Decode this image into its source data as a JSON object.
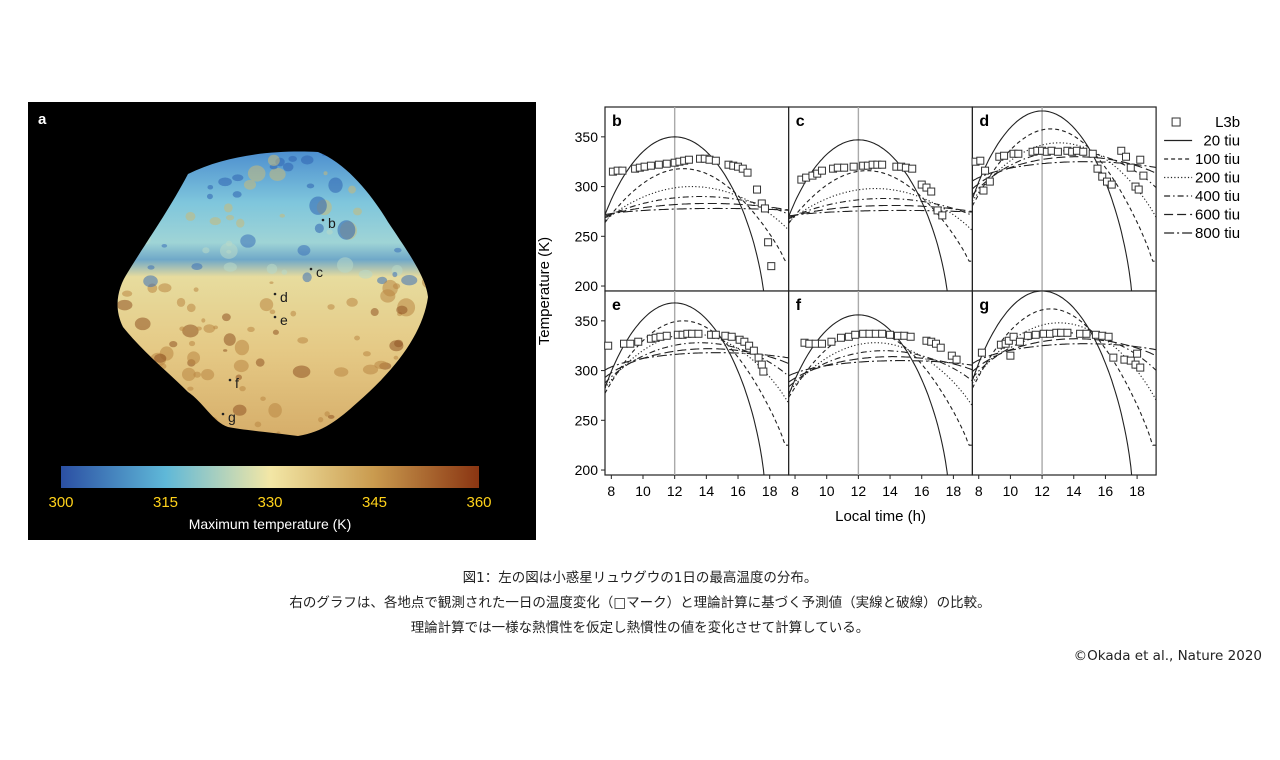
{
  "panel_a": {
    "label": "a",
    "points": [
      "b",
      "c",
      "d",
      "e",
      "f",
      "g"
    ],
    "colorbar": {
      "ticks": [
        "300",
        "315",
        "330",
        "345",
        "360"
      ],
      "title": "Maximum temperature (K)",
      "colors": [
        "#2b4fa3",
        "#5fb8d8",
        "#f3e7a6",
        "#c99a4e",
        "#8a3512"
      ]
    }
  },
  "chart_data": {
    "type": "line",
    "xlabel": "Local time (h)",
    "ylabel": "Temperature (K)",
    "xlim": [
      7.6,
      19.2
    ],
    "ylim": [
      195,
      380
    ],
    "xticks": [
      8,
      10,
      12,
      14,
      16,
      18
    ],
    "yticks": [
      200,
      250,
      300,
      350
    ],
    "vline": 12,
    "legend_position": "right",
    "legend": [
      {
        "name": "L3b",
        "style": "square"
      },
      {
        "name": "20 tiu",
        "style": "solid"
      },
      {
        "name": "100 tiu",
        "style": "dashed-short"
      },
      {
        "name": "200 tiu",
        "style": "dotted"
      },
      {
        "name": "400 tiu",
        "style": "dash-dot"
      },
      {
        "name": "600 tiu",
        "style": "dashed-long"
      },
      {
        "name": "800 tiu",
        "style": "dash-dot-long"
      }
    ],
    "panels": [
      {
        "label": "b",
        "tmax": [
          350,
          318,
          300,
          290,
          283,
          278
        ],
        "obs": [
          [
            8.1,
            315
          ],
          [
            8.4,
            316
          ],
          [
            8.7,
            316
          ],
          [
            9.5,
            318
          ],
          [
            9.8,
            319
          ],
          [
            10.1,
            320
          ],
          [
            10.5,
            321
          ],
          [
            11,
            322
          ],
          [
            11.5,
            323
          ],
          [
            12,
            324
          ],
          [
            12.3,
            325
          ],
          [
            12.6,
            326
          ],
          [
            12.9,
            327
          ],
          [
            13.6,
            328
          ],
          [
            13.9,
            328
          ],
          [
            14.2,
            327
          ],
          [
            14.6,
            326
          ],
          [
            15.4,
            322
          ],
          [
            15.7,
            321
          ],
          [
            16,
            320
          ],
          [
            16.3,
            318
          ],
          [
            16.6,
            314
          ],
          [
            17.2,
            297
          ],
          [
            17.5,
            283
          ],
          [
            17.7,
            278
          ],
          [
            17.9,
            244
          ],
          [
            18.1,
            220
          ]
        ]
      },
      {
        "label": "c",
        "tmax": [
          347,
          316,
          298,
          288,
          281,
          276
        ],
        "obs": [
          [
            8.4,
            307
          ],
          [
            8.7,
            309
          ],
          [
            9.1,
            311
          ],
          [
            9.4,
            313
          ],
          [
            9.7,
            316
          ],
          [
            10.4,
            318
          ],
          [
            10.7,
            319
          ],
          [
            11.1,
            319
          ],
          [
            11.7,
            320
          ],
          [
            12.3,
            321
          ],
          [
            12.6,
            321
          ],
          [
            12.9,
            322
          ],
          [
            13.2,
            322
          ],
          [
            13.5,
            322
          ],
          [
            14.4,
            320
          ],
          [
            14.7,
            320
          ],
          [
            15,
            319
          ],
          [
            15.4,
            318
          ],
          [
            16,
            302
          ],
          [
            16.3,
            299
          ],
          [
            16.6,
            295
          ],
          [
            17,
            276
          ],
          [
            17.3,
            271
          ]
        ]
      },
      {
        "label": "d",
        "tmax": [
          376,
          358,
          344,
          336,
          330,
          325
        ],
        "obs": [
          [
            7.8,
            325
          ],
          [
            8.1,
            326
          ],
          [
            8.4,
            316
          ],
          [
            8.7,
            305
          ],
          [
            8.3,
            296
          ],
          [
            9.3,
            330
          ],
          [
            9.6,
            331
          ],
          [
            10.2,
            333
          ],
          [
            10.5,
            333
          ],
          [
            11.4,
            335
          ],
          [
            11.7,
            336
          ],
          [
            12,
            336
          ],
          [
            12.3,
            335
          ],
          [
            12.6,
            336
          ],
          [
            13,
            335
          ],
          [
            13.6,
            336
          ],
          [
            13.9,
            335
          ],
          [
            14.2,
            336
          ],
          [
            14.6,
            335
          ],
          [
            15.2,
            333
          ],
          [
            15.5,
            318
          ],
          [
            15.8,
            310
          ],
          [
            16.1,
            305
          ],
          [
            16.4,
            302
          ],
          [
            17,
            336
          ],
          [
            17.3,
            330
          ],
          [
            17.6,
            319
          ],
          [
            17.9,
            300
          ],
          [
            18.1,
            297
          ],
          [
            18.4,
            311
          ],
          [
            18.2,
            327
          ]
        ]
      },
      {
        "label": "e",
        "tmax": [
          368,
          350,
          337,
          328,
          322,
          318
        ],
        "obs": [
          [
            7.8,
            325
          ],
          [
            8.8,
            327
          ],
          [
            9.2,
            327
          ],
          [
            9.7,
            329
          ],
          [
            10.5,
            332
          ],
          [
            10.8,
            333
          ],
          [
            11.1,
            334
          ],
          [
            11.5,
            335
          ],
          [
            12.2,
            336
          ],
          [
            12.5,
            336
          ],
          [
            12.8,
            337
          ],
          [
            13.1,
            337
          ],
          [
            13.5,
            337
          ],
          [
            14.3,
            336
          ],
          [
            14.6,
            336
          ],
          [
            15.2,
            335
          ],
          [
            15.6,
            334
          ],
          [
            16.1,
            331
          ],
          [
            16.4,
            329
          ],
          [
            16.7,
            325
          ],
          [
            17,
            320
          ],
          [
            17.3,
            313
          ],
          [
            17.5,
            306
          ],
          [
            17.6,
            299
          ]
        ]
      },
      {
        "label": "f",
        "tmax": [
          356,
          340,
          328,
          320,
          314,
          310
        ],
        "obs": [
          [
            8.6,
            328
          ],
          [
            8.9,
            327
          ],
          [
            9.3,
            327
          ],
          [
            9.7,
            327
          ],
          [
            10.3,
            329
          ],
          [
            10.9,
            333
          ],
          [
            11.4,
            334
          ],
          [
            11.8,
            336
          ],
          [
            12.3,
            337
          ],
          [
            12.7,
            337
          ],
          [
            13.1,
            337
          ],
          [
            13.5,
            337
          ],
          [
            14,
            336
          ],
          [
            14.5,
            335
          ],
          [
            14.9,
            335
          ],
          [
            15.3,
            334
          ],
          [
            16.3,
            330
          ],
          [
            16.6,
            329
          ],
          [
            16.9,
            327
          ],
          [
            17.2,
            323
          ],
          [
            17.9,
            315
          ],
          [
            18.2,
            311
          ]
        ]
      },
      {
        "label": "g",
        "tmax": [
          380,
          362,
          348,
          338,
          332,
          327
        ],
        "obs": [
          [
            8.2,
            318
          ],
          [
            9.4,
            326
          ],
          [
            9.7,
            327
          ],
          [
            9.9,
            330
          ],
          [
            10,
            315
          ],
          [
            10.2,
            334
          ],
          [
            10.6,
            329
          ],
          [
            11.1,
            335
          ],
          [
            11.6,
            336
          ],
          [
            12.1,
            337
          ],
          [
            12.5,
            337
          ],
          [
            12.9,
            338
          ],
          [
            13.2,
            338
          ],
          [
            13.6,
            338
          ],
          [
            14.4,
            337
          ],
          [
            14.8,
            337
          ],
          [
            15.4,
            336
          ],
          [
            15.8,
            335
          ],
          [
            16.2,
            334
          ],
          [
            16.5,
            313
          ],
          [
            17.2,
            311
          ],
          [
            17.6,
            310
          ],
          [
            17.9,
            306
          ],
          [
            18,
            317
          ],
          [
            18.2,
            303
          ]
        ]
      }
    ]
  },
  "caption": {
    "line1": "図1：左の図は小惑星リュウグウの1日の最高温度の分布。",
    "line2": "右のグラフは、各地点で観測された一日の温度変化（□マーク）と理論計算に基づく予測値（実線と破線）の比較。",
    "line3": "理論計算では一様な熱慣性を仮定し熱慣性の値を変化させて計算している。",
    "credit": "©Okada et al., Nature 2020"
  }
}
